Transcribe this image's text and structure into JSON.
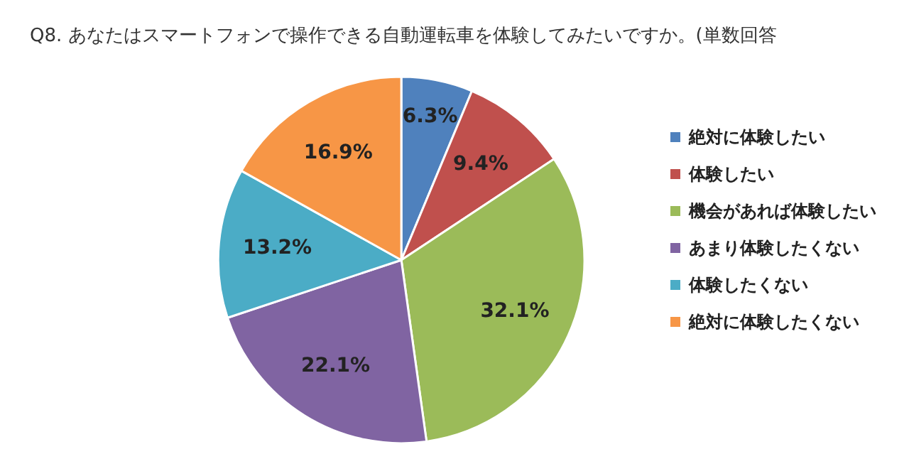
{
  "chart_data": {
    "type": "pie",
    "title": "Q8. あなたはスマートフォンで操作できる自動運転車を体験してみたいですか。(単数回答",
    "categories": [
      "絶対に体験したい",
      "体験したい",
      "機会があれば体験したい",
      "あまり体験したくない",
      "体験したくない",
      "絶対に体験したくない"
    ],
    "values": [
      6.3,
      9.4,
      32.1,
      22.1,
      13.2,
      16.9
    ],
    "colors": [
      "#4f81bd",
      "#c0504d",
      "#9bbb59",
      "#8064a2",
      "#4bacc6",
      "#f79646"
    ],
    "value_labels": [
      "6.3%",
      "9.4%",
      "32.1%",
      "22.1%",
      "13.2%",
      "16.9%"
    ],
    "legend": "right"
  }
}
